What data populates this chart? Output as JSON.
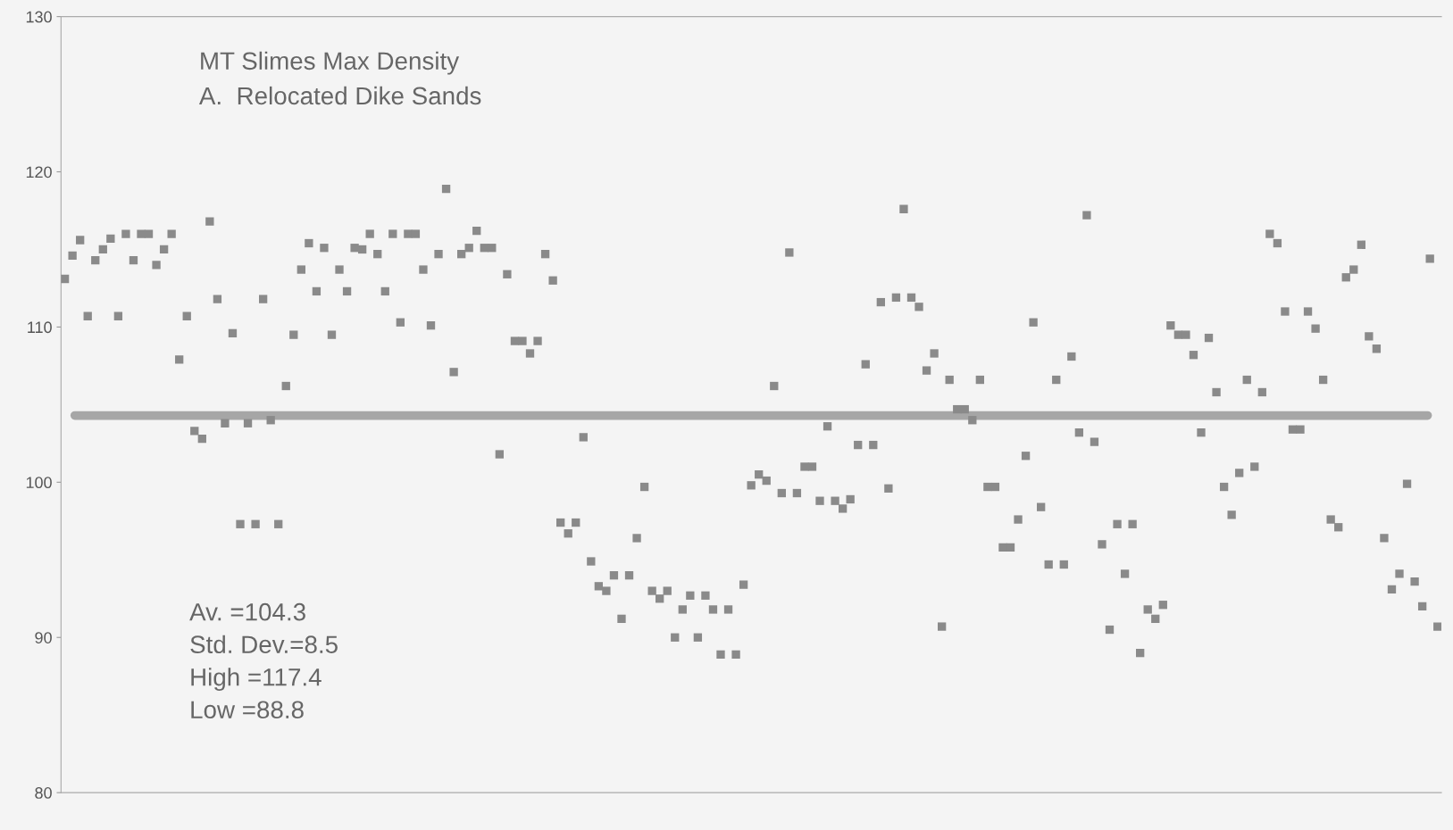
{
  "chart_data": {
    "type": "scatter",
    "title": "MT Slimes Max Density",
    "subtitle": "A.  Relocated Dike Sands",
    "categories": [
      null,
      null,
      null,
      null,
      null,
      null,
      null,
      null,
      null,
      null,
      null,
      null,
      null,
      null,
      null,
      null,
      null,
      null,
      null,
      null,
      null,
      null,
      null,
      null,
      null,
      null,
      null,
      null,
      null,
      null,
      null,
      null,
      null,
      null,
      null,
      null,
      null,
      null,
      null,
      null,
      null,
      null,
      null,
      null,
      null,
      null,
      null,
      null,
      null,
      null,
      null,
      null,
      null,
      null,
      null,
      null,
      null,
      null,
      null,
      null,
      null,
      null,
      null,
      null,
      null,
      null,
      null,
      null,
      null,
      null,
      null,
      null,
      null,
      null,
      null,
      null,
      null,
      null,
      null,
      null,
      null,
      null,
      null,
      null,
      null,
      null,
      null,
      null,
      null,
      null,
      null,
      null,
      null,
      null,
      null,
      null,
      null,
      null,
      null,
      null,
      null,
      null,
      null,
      null,
      null,
      null,
      null,
      null,
      null,
      null,
      null,
      null,
      null,
      null,
      null,
      null,
      null,
      null,
      null,
      null,
      null,
      null,
      null,
      null,
      null,
      null,
      null,
      null,
      null,
      null,
      null,
      null,
      null,
      null,
      null,
      null,
      null,
      null,
      null,
      null,
      null,
      null,
      null,
      null,
      null,
      null,
      null,
      null,
      null,
      null,
      null,
      null,
      null,
      null,
      null,
      null,
      null,
      null,
      null,
      null,
      null,
      null,
      null,
      null,
      null,
      null,
      null,
      null,
      null,
      null,
      null,
      null,
      null,
      null,
      null,
      null,
      null,
      null,
      null,
      null,
      null
    ],
    "series": [
      {
        "color": "#8a8a8a",
        "values": [
          113.1,
          114.6,
          115.6,
          110.7,
          114.3,
          115.0,
          115.7,
          110.7,
          116.0,
          114.3,
          116.0,
          116.0,
          114.0,
          115.0,
          116.0,
          107.9,
          110.7,
          103.3,
          102.8,
          116.8,
          111.8,
          103.8,
          109.6,
          97.3,
          103.8,
          97.3,
          111.8,
          104.0,
          97.3,
          106.2,
          109.5,
          113.7,
          115.4,
          112.3,
          115.1,
          109.5,
          113.7,
          112.3,
          115.1,
          115.0,
          116.0,
          114.7,
          112.3,
          116.0,
          110.3,
          116.0,
          116.0,
          113.7,
          110.1,
          114.7,
          118.9,
          107.1,
          114.7,
          115.1,
          116.2,
          115.1,
          115.1,
          101.8,
          113.4,
          109.1,
          109.1,
          108.3,
          109.1,
          114.7,
          113.0,
          97.4,
          96.7,
          97.4,
          102.9,
          94.9,
          93.3,
          93.0,
          94.0,
          91.2,
          94.0,
          96.4,
          99.7,
          93.0,
          92.5,
          93.0,
          90.0,
          91.8,
          92.7,
          90.0,
          92.7,
          91.8,
          88.9,
          91.8,
          88.9,
          93.4,
          99.8,
          100.5,
          100.1,
          106.2,
          99.3,
          114.8,
          99.3,
          101.0,
          101.0,
          98.8,
          103.6,
          98.8,
          98.3,
          98.9,
          102.4,
          107.6,
          102.4,
          111.6,
          99.6,
          111.9,
          117.6,
          111.9,
          111.3,
          107.2,
          108.3,
          90.7,
          106.6,
          104.7,
          104.7,
          104.0,
          106.6,
          99.7,
          99.7,
          95.8,
          95.8,
          97.6,
          101.7,
          110.3,
          98.4,
          94.7,
          106.6,
          94.7,
          108.1,
          103.2,
          117.2,
          102.6,
          96.0,
          90.5,
          97.3,
          94.1,
          97.3,
          89.0,
          91.8,
          91.2,
          92.1,
          110.1,
          109.5,
          109.5,
          108.2,
          103.2,
          109.3,
          105.8,
          99.7,
          97.9,
          100.6,
          106.6,
          101.0,
          105.8,
          116.0,
          115.4,
          111.0,
          103.4,
          103.4,
          111.0,
          109.9,
          106.6,
          97.6,
          97.1,
          113.2,
          113.7,
          115.3,
          109.4,
          108.6,
          96.4,
          93.1,
          94.1,
          99.9,
          93.6,
          92.0,
          114.4,
          90.7
        ]
      }
    ],
    "ylim": [
      80,
      130
    ],
    "yticks": [
      80,
      90,
      100,
      110,
      120,
      130
    ],
    "tick_labels": "y",
    "grid": false,
    "legend": false,
    "marker": "square",
    "ref_lines": [
      {
        "axis": "y",
        "value": 104.3,
        "color": "#a6a6a6"
      }
    ],
    "annotations": [
      "Av. =104.3",
      "Std. Dev.=8.5",
      "High =117.4",
      "Low =88.8"
    ]
  }
}
